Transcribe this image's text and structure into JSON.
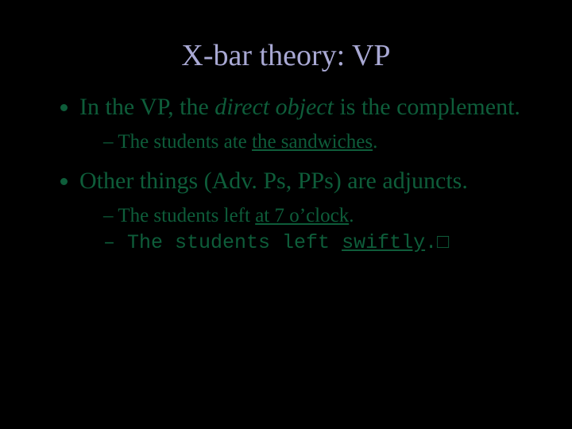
{
  "colors": {
    "background": "#000000",
    "title": "#a9a9d4",
    "body_text": "#0e5d3a"
  },
  "fonts": {
    "title_family": "Times New Roman",
    "body_family": "Times New Roman",
    "mono_family": "Courier New",
    "title_size_pt": 38,
    "bullet_size_pt": 30,
    "sub_bullet_size_pt": 25
  },
  "title": "X-bar theory: VP",
  "bullets": [
    {
      "prefix": "In the VP, the ",
      "italic": "direct object",
      "suffix": " is the complement.",
      "sub": [
        {
          "prefix": "The students ate ",
          "underline": "the sandwiches",
          "suffix": "."
        }
      ]
    },
    {
      "text": "Other things (Adv. Ps, PPs) are adjuncts.",
      "sub": [
        {
          "prefix": "The students left ",
          "underline": "at 7 o’clock",
          "suffix": "."
        },
        {
          "mono": true,
          "prefix": "The students left ",
          "underline": "swiftly",
          "suffix": ".□"
        }
      ]
    }
  ]
}
